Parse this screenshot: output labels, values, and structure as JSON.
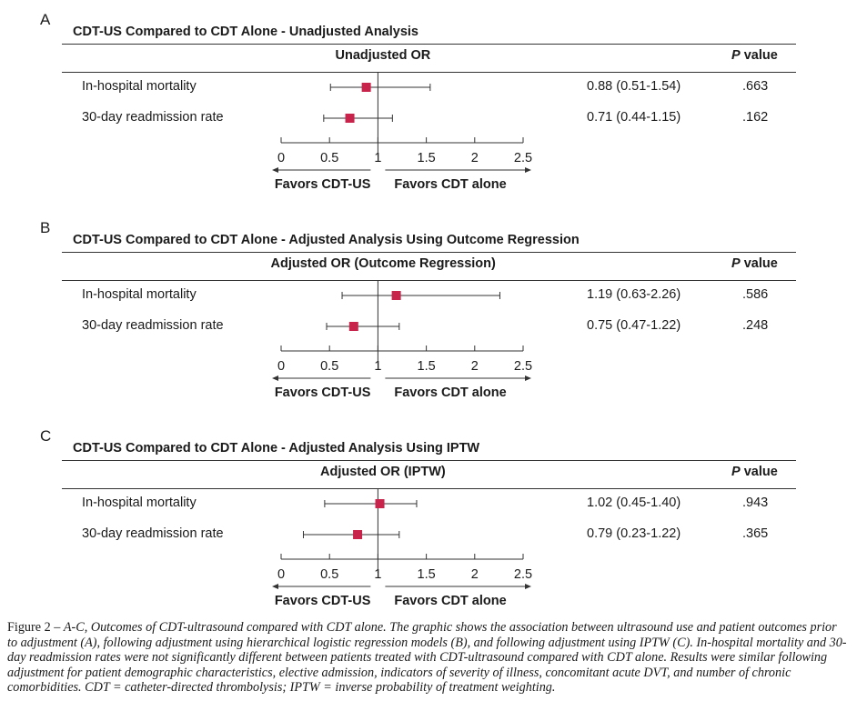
{
  "figure": {
    "caption_lead": "Figure 2 – ",
    "caption_text": "A-C, Outcomes of CDT-ultrasound compared with CDT alone. The graphic shows the association between ultrasound use and patient outcomes prior to adjustment (A), following adjustment using hierarchical logistic regression models (B), and following adjustment using IPTW (C). In-hospital mortality and 30-day readmission rates were not significantly different between patients treated with CDT-ultrasound compared with CDT alone. Results were similar following adjustment for patient demographic characteristics, elective admission, indicators of severity of illness, concomitant acute DVT, and number of chronic comorbidities. CDT = catheter-directed thrombolysis; IPTW = inverse probability of treatment weighting."
  },
  "colors": {
    "marker": "#c8234a",
    "line": "#333333"
  },
  "chart_data": [
    {
      "type": "forest",
      "panel": "A",
      "title": "CDT-US Compared to CDT Alone - Unadjusted Analysis",
      "or_header": "Unadjusted OR",
      "p_header_italic": "P",
      "p_header_rest": " value",
      "xlim": [
        0,
        2.5
      ],
      "ticks": [
        0,
        0.5,
        1,
        1.5,
        2,
        2.5
      ],
      "tick_labels": [
        "0",
        "0.5",
        "1",
        "1.5",
        "2",
        "2.5"
      ],
      "favors_left": "Favors CDT-US",
      "favors_right": "Favors CDT alone",
      "rows": [
        {
          "label": "In-hospital mortality",
          "or": 0.88,
          "lo": 0.51,
          "hi": 1.54,
          "or_text": "0.88 (0.51-1.54)",
          "p": ".663"
        },
        {
          "label": "30-day readmission rate",
          "or": 0.71,
          "lo": 0.44,
          "hi": 1.15,
          "or_text": "0.71 (0.44-1.15)",
          "p": ".162"
        }
      ]
    },
    {
      "type": "forest",
      "panel": "B",
      "title": "CDT-US Compared to CDT Alone - Adjusted Analysis Using Outcome Regression",
      "or_header": "Adjusted OR (Outcome Regression)",
      "p_header_italic": "P",
      "p_header_rest": " value",
      "xlim": [
        0,
        2.5
      ],
      "ticks": [
        0,
        0.5,
        1,
        1.5,
        2,
        2.5
      ],
      "tick_labels": [
        "0",
        "0.5",
        "1",
        "1.5",
        "2",
        "2.5"
      ],
      "favors_left": "Favors CDT-US",
      "favors_right": "Favors CDT alone",
      "rows": [
        {
          "label": "In-hospital mortality",
          "or": 1.19,
          "lo": 0.63,
          "hi": 2.26,
          "or_text": "1.19 (0.63-2.26)",
          "p": ".586"
        },
        {
          "label": "30-day readmission rate",
          "or": 0.75,
          "lo": 0.47,
          "hi": 1.22,
          "or_text": "0.75 (0.47-1.22)",
          "p": ".248"
        }
      ]
    },
    {
      "type": "forest",
      "panel": "C",
      "title": "CDT-US Compared to CDT Alone - Adjusted Analysis Using IPTW",
      "or_header": "Adjusted OR (IPTW)",
      "p_header_italic": "P",
      "p_header_rest": " value",
      "xlim": [
        0,
        2.5
      ],
      "ticks": [
        0,
        0.5,
        1,
        1.5,
        2,
        2.5
      ],
      "tick_labels": [
        "0",
        "0.5",
        "1",
        "1.5",
        "2",
        "2.5"
      ],
      "favors_left": "Favors CDT-US",
      "favors_right": "Favors CDT alone",
      "rows": [
        {
          "label": "In-hospital mortality",
          "or": 1.02,
          "lo": 0.45,
          "hi": 1.4,
          "or_text": "1.02 (0.45-1.40)",
          "p": ".943"
        },
        {
          "label": "30-day readmission rate",
          "or": 0.79,
          "lo": 0.23,
          "hi": 1.22,
          "or_text": "0.79 (0.23-1.22)",
          "p": ".365"
        }
      ]
    }
  ]
}
